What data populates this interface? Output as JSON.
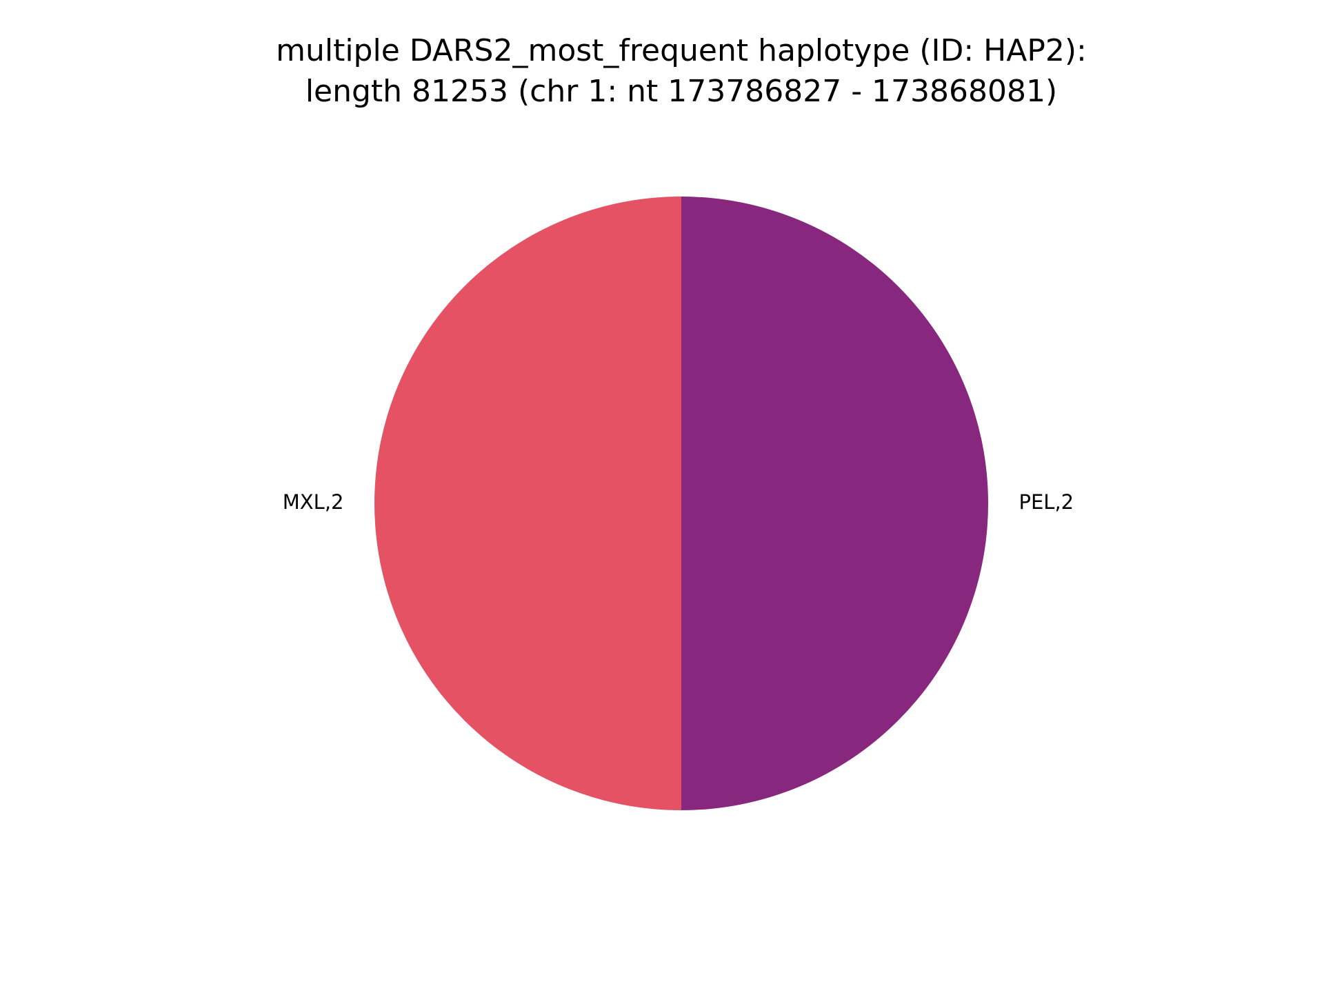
{
  "chart_data": {
    "type": "pie",
    "title_lines": [
      "multiple DARS2_most_frequent haplotype (ID: HAP2):",
      "length 81253 (chr 1: nt 173786827 - 173868081)"
    ],
    "slices": [
      {
        "label": "MXL,2",
        "value": 2,
        "color": "#e55263"
      },
      {
        "label": "PEL,2",
        "value": 2,
        "color": "#88277e"
      }
    ],
    "start_angle_deg": 90,
    "direction": "counterclockwise"
  }
}
